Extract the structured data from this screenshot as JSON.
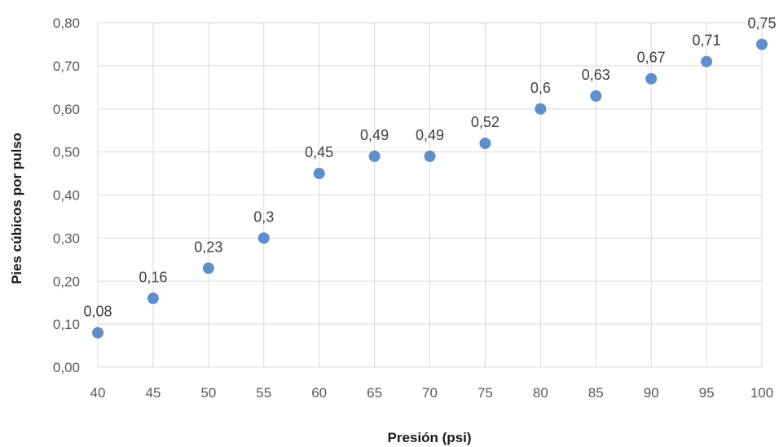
{
  "chart_data": {
    "type": "scatter",
    "title": "",
    "xlabel": "Presión (psi)",
    "ylabel": "Pies cúbicos por pulso",
    "xlim": [
      40,
      100
    ],
    "ylim": [
      0,
      0.8
    ],
    "x_ticks": [
      40,
      45,
      50,
      55,
      60,
      65,
      70,
      75,
      80,
      85,
      90,
      95,
      100
    ],
    "x_tick_labels": [
      "40",
      "45",
      "50",
      "55",
      "60",
      "65",
      "70",
      "75",
      "80",
      "85",
      "90",
      "95",
      "100"
    ],
    "y_ticks": [
      0,
      0.1,
      0.2,
      0.3,
      0.4,
      0.5,
      0.6,
      0.7,
      0.8
    ],
    "y_tick_labels": [
      "0,00",
      "0,10",
      "0,20",
      "0,30",
      "0,40",
      "0,50",
      "0,60",
      "0,70",
      "0,80"
    ],
    "grid": true,
    "legend": "none",
    "marker_color": "#5b8fd0",
    "series": [
      {
        "x": [
          40,
          45,
          50,
          55,
          60,
          65,
          70,
          75,
          80,
          85,
          90,
          95,
          100
        ],
        "y": [
          0.08,
          0.16,
          0.23,
          0.3,
          0.45,
          0.49,
          0.49,
          0.52,
          0.6,
          0.63,
          0.67,
          0.71,
          0.75
        ],
        "labels": [
          "0,08",
          "0,16",
          "0,23",
          "0,3",
          "0,45",
          "0,49",
          "0,49",
          "0,52",
          "0,6",
          "0,63",
          "0,67",
          "0,71",
          "0,75"
        ]
      }
    ]
  }
}
